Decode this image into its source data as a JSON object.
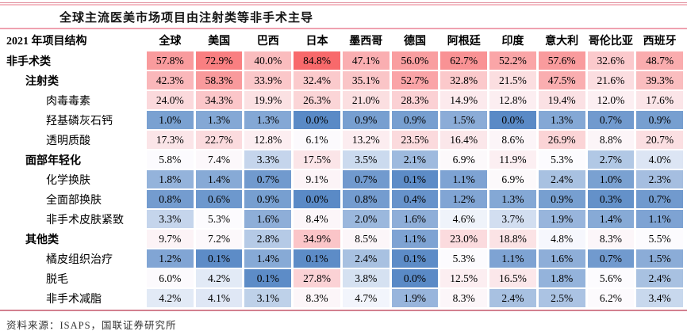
{
  "title": "全球主流医美市场项目由注射类等非手术主导",
  "source": "资料来源：ISAPS，国联证券研究所",
  "chart_data": {
    "type": "heatmap",
    "title": "全球主流医美市场项目由注射类等非手术主导",
    "unit": "%",
    "corner_label": "2021 年项目结构",
    "columns": [
      "全球",
      "美国",
      "巴西",
      "日本",
      "墨西哥",
      "德国",
      "阿根廷",
      "印度",
      "意大利",
      "哥伦比亚",
      "西班牙"
    ],
    "rows": [
      {
        "label": "非手术类",
        "level": 1,
        "values": [
          57.8,
          72.9,
          40.0,
          84.8,
          47.1,
          56.0,
          62.7,
          52.2,
          57.6,
          32.6,
          48.7
        ]
      },
      {
        "label": "注射类",
        "level": 2,
        "values": [
          42.3,
          58.3,
          33.9,
          32.4,
          35.1,
          52.7,
          32.8,
          21.5,
          47.5,
          21.6,
          39.3
        ]
      },
      {
        "label": "肉毒毒素",
        "level": 3,
        "values": [
          24.0,
          34.3,
          19.9,
          26.3,
          21.0,
          28.3,
          14.9,
          12.8,
          19.4,
          12.0,
          17.6
        ]
      },
      {
        "label": "羟基磷灰石钙",
        "level": 3,
        "values": [
          1.0,
          1.3,
          1.3,
          0.0,
          0.9,
          0.9,
          1.5,
          0.0,
          1.3,
          0.7,
          0.9
        ]
      },
      {
        "label": "透明质酸",
        "level": 3,
        "values": [
          17.3,
          22.7,
          12.8,
          6.1,
          13.2,
          23.5,
          16.4,
          8.6,
          26.9,
          8.8,
          20.7
        ]
      },
      {
        "label": "面部年轻化",
        "level": 2,
        "values": [
          5.8,
          7.4,
          3.3,
          17.5,
          3.5,
          2.1,
          6.9,
          11.9,
          5.3,
          2.7,
          4.0
        ]
      },
      {
        "label": "化学换肤",
        "level": 3,
        "values": [
          1.8,
          1.4,
          0.7,
          9.1,
          0.7,
          0.1,
          1.1,
          6.9,
          2.4,
          1.0,
          2.3
        ]
      },
      {
        "label": "全面部换肤",
        "level": 3,
        "values": [
          0.8,
          0.6,
          0.9,
          0.0,
          0.8,
          0.4,
          1.2,
          1.3,
          0.9,
          0.3,
          0.7
        ]
      },
      {
        "label": "非手术皮肤紧致",
        "level": 3,
        "values": [
          3.3,
          5.3,
          1.6,
          8.4,
          2.0,
          1.6,
          4.6,
          3.7,
          1.9,
          1.4,
          1.1
        ]
      },
      {
        "label": "其他类",
        "level": 2,
        "values": [
          9.7,
          7.2,
          2.8,
          34.9,
          8.5,
          1.1,
          23.0,
          18.8,
          4.8,
          8.3,
          5.5
        ]
      },
      {
        "label": "橘皮组织治疗",
        "level": 3,
        "values": [
          1.2,
          0.1,
          1.4,
          0.1,
          2.4,
          0.1,
          5.3,
          1.1,
          1.6,
          0.7,
          1.5
        ]
      },
      {
        "label": "脱毛",
        "level": 3,
        "values": [
          6.0,
          4.2,
          0.1,
          27.8,
          3.8,
          0.0,
          12.5,
          16.5,
          1.8,
          5.6,
          2.4
        ]
      },
      {
        "label": "非手术减脂",
        "level": 3,
        "values": [
          4.2,
          4.1,
          3.1,
          8.3,
          4.7,
          1.9,
          8.3,
          2.4,
          2.5,
          6.2,
          3.4
        ]
      }
    ],
    "color_scale": {
      "min_value": 0.0,
      "mid_value": 5.0,
      "max_value": 84.8,
      "min_color": "#5A8AC6",
      "mid_color": "#FCFCFF",
      "max_color": "#F8696B"
    },
    "legend_position": "none",
    "grid": false
  },
  "colors": {
    "top_rule_dark": "#dd8494",
    "top_rule_light": "#f5bdc5",
    "title_rule": "#efa2b0",
    "bottom_rule": "#d2808f"
  }
}
